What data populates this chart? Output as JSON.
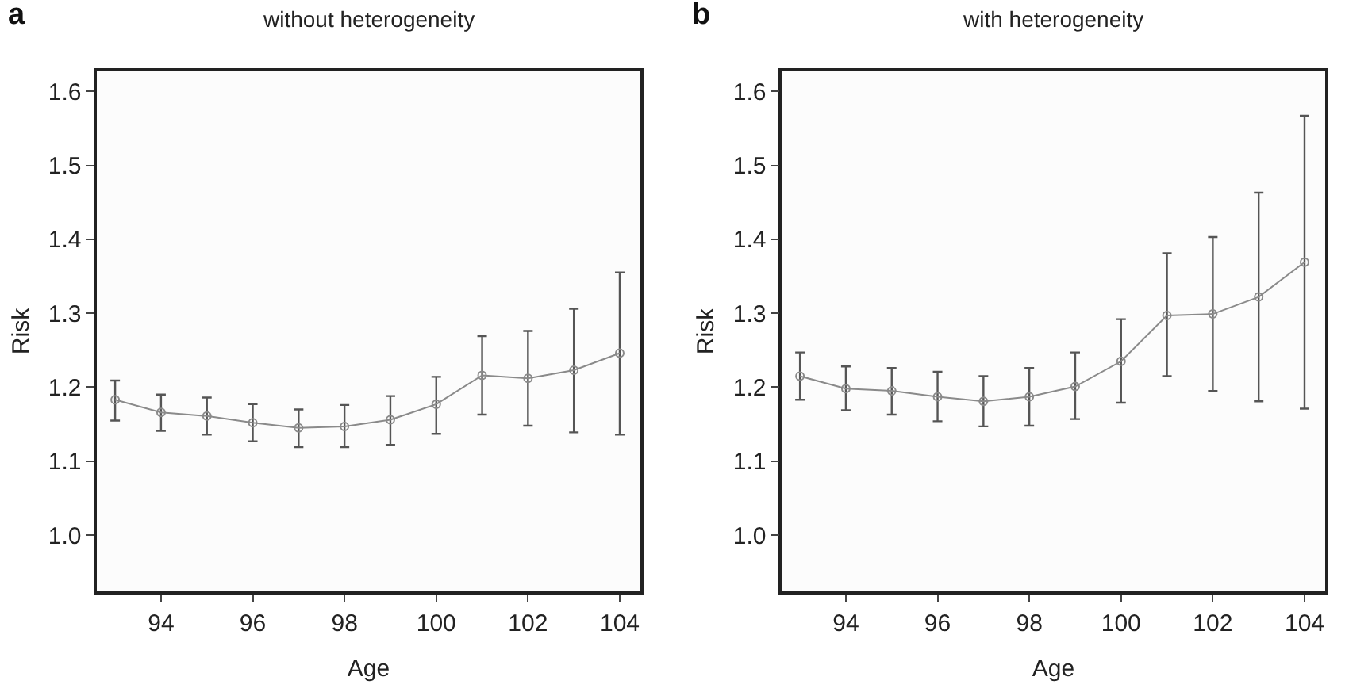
{
  "chart_data": [
    {
      "type": "line",
      "title": "without heterogeneity",
      "xlabel": "Age",
      "ylabel": "Risk",
      "annotations": [
        "a"
      ],
      "x": [
        93,
        94,
        95,
        96,
        97,
        98,
        99,
        100,
        101,
        102,
        103,
        104
      ],
      "series": [
        {
          "color": "#8a8a8a",
          "values": [
            1.183,
            1.166,
            1.161,
            1.152,
            1.145,
            1.147,
            1.156,
            1.177,
            1.216,
            1.212,
            1.223,
            1.246
          ],
          "errors": [
            [
              1.155,
              1.209
            ],
            [
              1.141,
              1.19
            ],
            [
              1.136,
              1.186
            ],
            [
              1.127,
              1.177
            ],
            [
              1.119,
              1.17
            ],
            [
              1.119,
              1.176
            ],
            [
              1.122,
              1.188
            ],
            [
              1.137,
              1.214
            ],
            [
              1.163,
              1.269
            ],
            [
              1.148,
              1.276
            ],
            [
              1.139,
              1.306
            ],
            [
              1.136,
              1.355
            ]
          ]
        }
      ],
      "xlim": [
        92.6,
        104.45
      ],
      "xticks": [
        94,
        96,
        98,
        100,
        102,
        104
      ],
      "ylim": [
        0.924,
        1.627
      ],
      "yticks": [
        {
          "value": 1,
          "label": "1.0"
        },
        1.1,
        1.2,
        1.3,
        1.4,
        1.5,
        1.6
      ],
      "marker": "circle",
      "line_style": "solid"
    },
    {
      "type": "line",
      "title": "with heterogeneity",
      "xlabel": "Age",
      "ylabel": "Risk",
      "annotations": [
        "b"
      ],
      "x": [
        93,
        94,
        95,
        96,
        97,
        98,
        99,
        100,
        101,
        102,
        103,
        104
      ],
      "series": [
        {
          "color": "#8a8a8a",
          "values": [
            1.215,
            1.198,
            1.195,
            1.187,
            1.181,
            1.187,
            1.201,
            1.235,
            1.297,
            1.299,
            1.322,
            1.369
          ],
          "errors": [
            [
              1.183,
              1.247
            ],
            [
              1.169,
              1.228
            ],
            [
              1.163,
              1.226
            ],
            [
              1.154,
              1.221
            ],
            [
              1.147,
              1.215
            ],
            [
              1.148,
              1.226
            ],
            [
              1.157,
              1.247
            ],
            [
              1.179,
              1.292
            ],
            [
              1.215,
              1.381
            ],
            [
              1.195,
              1.403
            ],
            [
              1.181,
              1.463
            ],
            [
              1.171,
              1.567
            ]
          ]
        }
      ],
      "xlim": [
        92.6,
        104.45
      ],
      "xticks": [
        94,
        96,
        98,
        100,
        102,
        104
      ],
      "ylim": [
        0.924,
        1.627
      ],
      "yticks": [
        {
          "value": 1,
          "label": "1.0"
        },
        1.1,
        1.2,
        1.3,
        1.4,
        1.5,
        1.6
      ],
      "marker": "circle",
      "line_style": "solid"
    }
  ]
}
